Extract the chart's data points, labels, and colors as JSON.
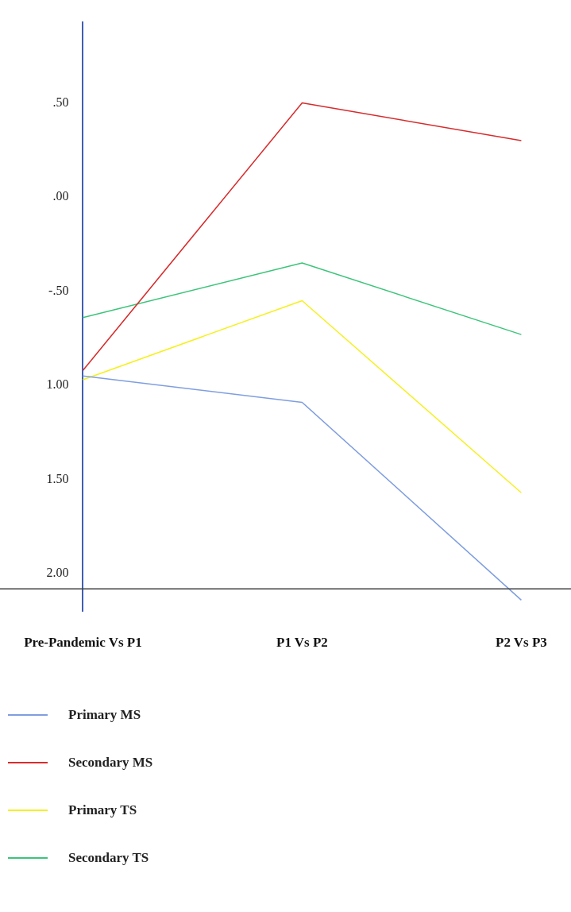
{
  "chart_data": {
    "type": "line",
    "categories": [
      "Pre-Pandemic Vs P1",
      "P1 Vs P2",
      "P2 Vs P3"
    ],
    "series": [
      {
        "name": "Primary MS",
        "color": "#7f9ee0",
        "values": [
          -0.95,
          -1.09,
          -2.14
        ]
      },
      {
        "name": "Secondary MS",
        "color": "#d62c2c",
        "values": [
          -0.92,
          0.5,
          0.3
        ]
      },
      {
        "name": "Primary TS",
        "color": "#f5f01e",
        "values": [
          -0.97,
          -0.55,
          -1.57
        ]
      },
      {
        "name": "Secondary TS",
        "color": "#3cc47a",
        "values": [
          -0.64,
          -0.35,
          -0.73
        ]
      }
    ],
    "ylim": [
      -2.2,
      0.93
    ],
    "yticks": [
      {
        "value": 0.5,
        "label": ".50"
      },
      {
        "value": 0,
        "label": ".00"
      },
      {
        "value": -0.5,
        "label": "-.50"
      },
      {
        "value": -1,
        "label": "1.00"
      },
      {
        "value": -1.5,
        "label": "1.50"
      },
      {
        "value": -2,
        "label": "2.00"
      }
    ],
    "ref_lines": [
      {
        "axis": "y",
        "value": -2.08,
        "color": "#404040"
      }
    ],
    "grid": false,
    "legend": "bottom left",
    "marker": "none",
    "line_style": "solid"
  }
}
